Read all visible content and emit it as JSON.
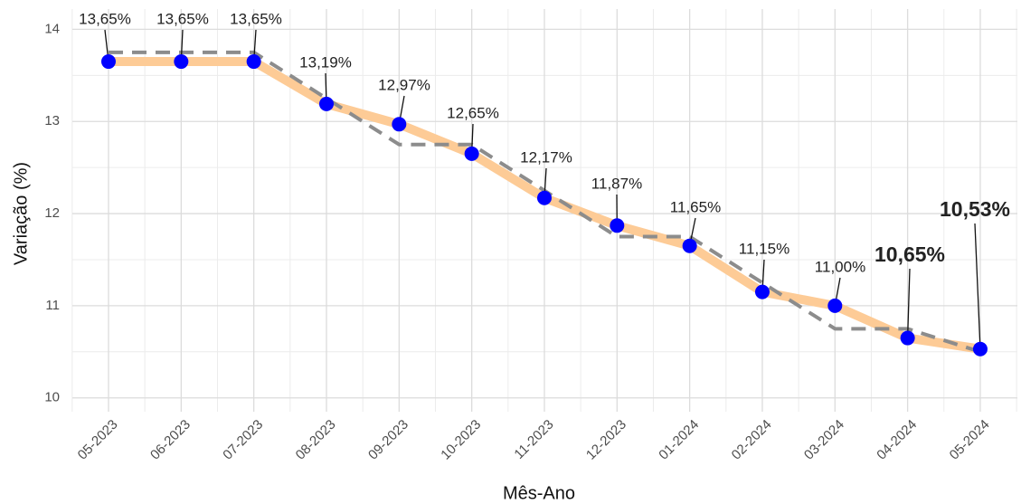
{
  "chart_data": {
    "type": "line",
    "x_label": "Mês-Ano",
    "y_label": "Variação (%)",
    "categories": [
      "05-2023",
      "06-2023",
      "07-2023",
      "08-2023",
      "09-2023",
      "10-2023",
      "11-2023",
      "12-2023",
      "01-2024",
      "02-2024",
      "03-2024",
      "04-2024",
      "05-2024"
    ],
    "series": [
      {
        "color": "#fdcb96",
        "values": [
          13.65,
          13.65,
          13.65,
          13.19,
          12.97,
          12.65,
          12.17,
          11.87,
          11.65,
          11.15,
          11.0,
          10.65,
          10.53
        ],
        "value_labels": [
          "13,65%",
          "13,65%",
          "13,65%",
          "13,19%",
          "12,97%",
          "12,65%",
          "12,17%",
          "11,87%",
          "11,65%",
          "11,15%",
          "11,00%",
          "10,65%",
          "10,53%"
        ],
        "marker_color": "#0000ff"
      },
      {
        "color": "#8c8c8c",
        "dashed": true,
        "values": [
          13.75,
          13.75,
          13.75,
          13.25,
          12.75,
          12.75,
          12.25,
          11.75,
          11.75,
          11.25,
          10.75,
          10.75,
          10.5
        ]
      }
    ],
    "ylim": [
      9.85,
      14.22
    ],
    "yticks": [
      10,
      11,
      12,
      13,
      14
    ],
    "grid": true
  }
}
